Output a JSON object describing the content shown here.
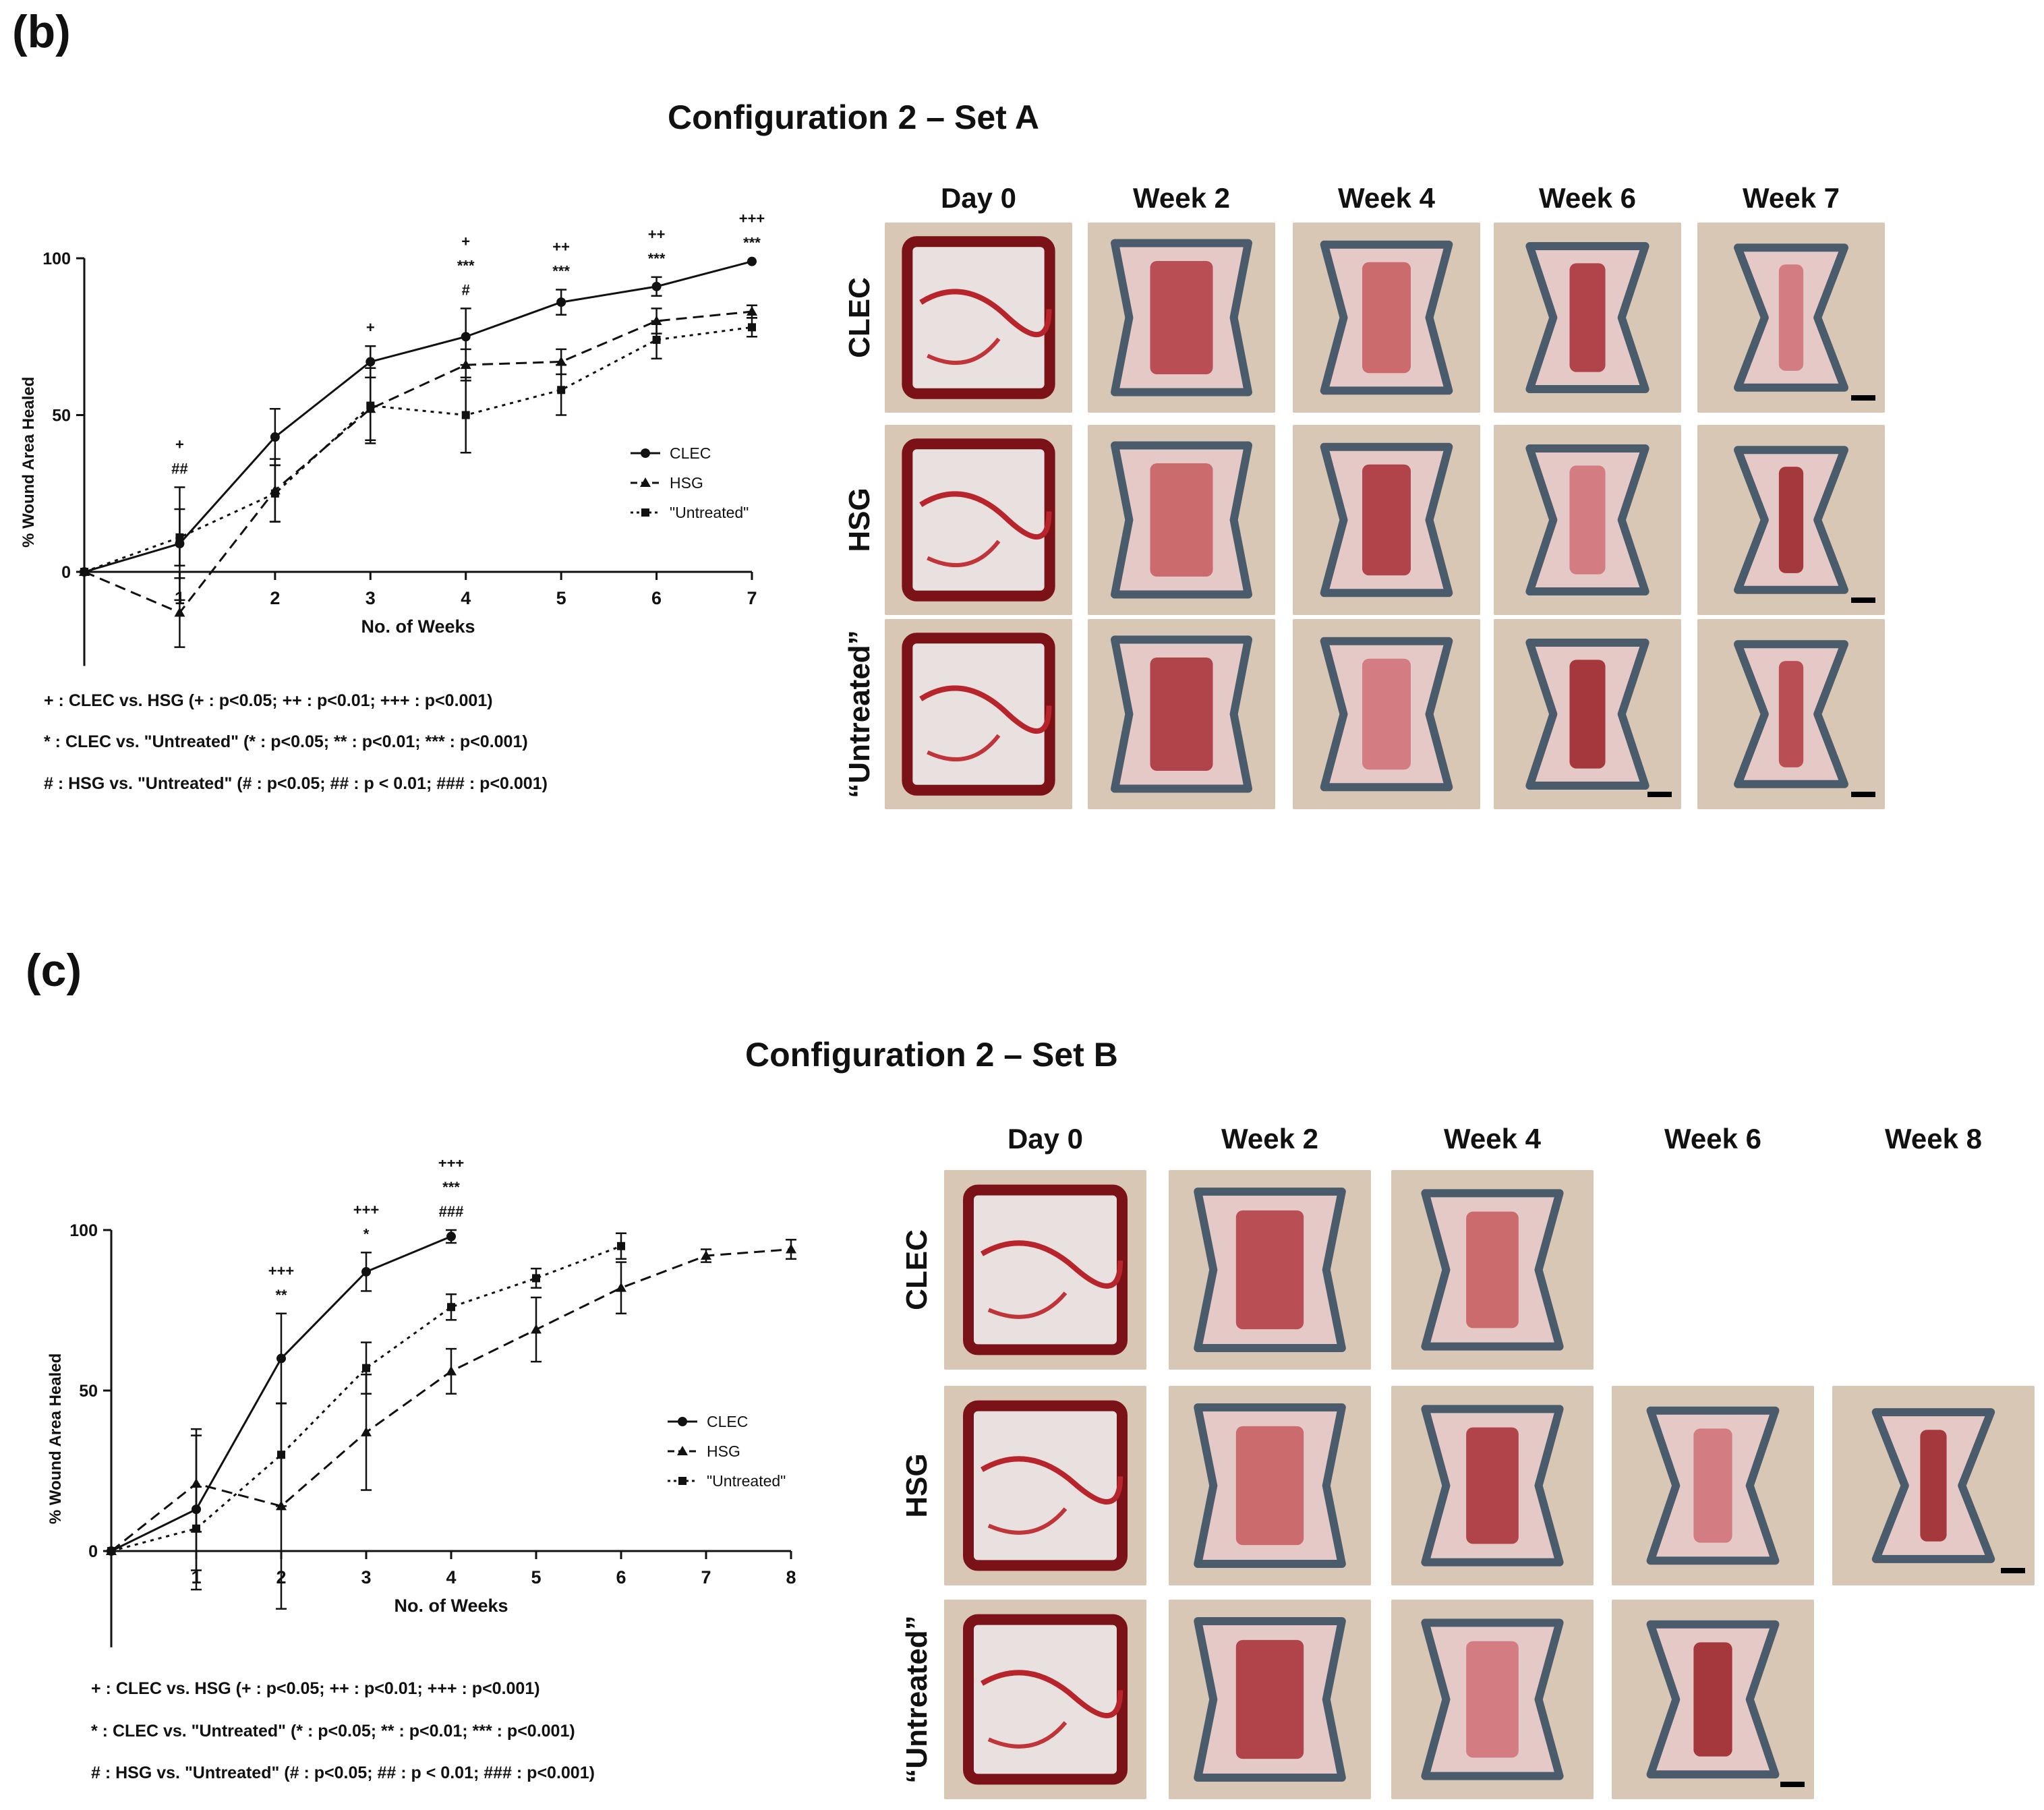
{
  "panels": [
    {
      "letter": "(b)",
      "title": "Configuration 2 – Set A",
      "col_headers": [
        "Day 0",
        "Week 2",
        "Week 4",
        "Week 6",
        "Week 7"
      ],
      "row_headers": [
        "CLEC",
        "HSG",
        "“Untreated”"
      ],
      "stat_legend": [
        "+ : CLEC vs. HSG (+ : p<0.05; ++ : p<0.01; +++ : p<0.001)",
        "* : CLEC vs. \"Untreated\" (* : p<0.05; ** : p<0.01; *** : p<0.001)",
        "# : HSG vs. \"Untreated\" (# : p<0.05; ## : p < 0.01; ### : p<0.001)"
      ],
      "photo_grid": [
        [
          "wound-tile",
          "wound-tile",
          "wound-tile",
          "wound-tile",
          "wound-tile"
        ],
        [
          "wound-tile",
          "wound-tile",
          "wound-tile",
          "wound-tile",
          "wound-tile"
        ],
        [
          "wound-tile",
          "wound-tile",
          "wound-tile",
          "wound-tile",
          "wound-tile"
        ]
      ]
    },
    {
      "letter": "(c)",
      "title": "Configuration 2 – Set B",
      "col_headers": [
        "Day 0",
        "Week 2",
        "Week 4",
        "Week 6",
        "Week 8"
      ],
      "row_headers": [
        "CLEC",
        "HSG",
        "“Untreated”"
      ],
      "stat_legend": [
        "+ : CLEC vs. HSG (+ : p<0.05; ++ : p<0.01; +++ : p<0.001)",
        "* : CLEC vs. \"Untreated\" (* : p<0.05; ** : p<0.01; *** : p<0.001)",
        "# : HSG vs. \"Untreated\" (# : p<0.05; ## : p < 0.01; ### : p<0.001)"
      ],
      "photo_grid": [
        [
          "wound-tile",
          "wound-tile",
          "wound-tile",
          null,
          null
        ],
        [
          "wound-tile",
          "wound-tile",
          "wound-tile",
          "wound-tile",
          "wound-tile"
        ],
        [
          "wound-tile",
          "wound-tile",
          "wound-tile",
          "wound-tile",
          null
        ]
      ]
    }
  ],
  "colors": {
    "line": "#111111",
    "wound": "#b4323a",
    "skin": "#d8c7b4",
    "ink": "#4a5b6c"
  },
  "chart_data": [
    {
      "type": "line",
      "title": "",
      "xlabel": "No. of Weeks",
      "ylabel": "% Wound Area Healed",
      "xlim": [
        0,
        7
      ],
      "ylim": [
        -30,
        100
      ],
      "x_ticks": [
        1,
        2,
        3,
        4,
        5,
        6,
        7
      ],
      "y_ticks": [
        0,
        50,
        100
      ],
      "legend_position": "right-middle",
      "series": [
        {
          "name": "CLEC",
          "style": "solid",
          "marker": "circle",
          "x": [
            0,
            1,
            2,
            3,
            4,
            5,
            6,
            7
          ],
          "y": [
            0,
            9,
            43,
            67,
            75,
            86,
            91,
            99
          ],
          "err": [
            0,
            18,
            9,
            5,
            9,
            4,
            3,
            0
          ]
        },
        {
          "name": "HSG",
          "style": "dashed",
          "marker": "triangle",
          "x": [
            0,
            1,
            2,
            3,
            4,
            5,
            6,
            7
          ],
          "y": [
            0,
            -13,
            26,
            52,
            66,
            67,
            80,
            83
          ],
          "err": [
            0,
            11,
            10,
            10,
            5,
            4,
            4,
            2
          ]
        },
        {
          "name": "\"Untreated\"",
          "style": "dotted",
          "marker": "square",
          "x": [
            0,
            1,
            2,
            3,
            4,
            5,
            6,
            7
          ],
          "y": [
            0,
            11,
            25,
            53,
            50,
            58,
            74,
            78
          ],
          "err": [
            0,
            9,
            9,
            12,
            12,
            8,
            6,
            3
          ]
        }
      ],
      "annotations": [
        {
          "x": 1,
          "lines": [
            "+",
            "##"
          ]
        },
        {
          "x": 3,
          "lines": [
            "+"
          ]
        },
        {
          "x": 4,
          "lines": [
            "+",
            "***",
            "#"
          ]
        },
        {
          "x": 5,
          "lines": [
            "++",
            "***"
          ]
        },
        {
          "x": 6,
          "lines": [
            "++",
            "***"
          ]
        },
        {
          "x": 7,
          "lines": [
            "+++",
            "***"
          ]
        }
      ]
    },
    {
      "type": "line",
      "title": "",
      "xlabel": "No. of Weeks",
      "ylabel": "% Wound Area Healed",
      "xlim": [
        0,
        8
      ],
      "ylim": [
        -30,
        100
      ],
      "x_ticks": [
        1,
        2,
        3,
        4,
        5,
        6,
        7,
        8
      ],
      "y_ticks": [
        0,
        50,
        100
      ],
      "legend_position": "right-middle",
      "series": [
        {
          "name": "CLEC",
          "style": "solid",
          "marker": "circle",
          "x": [
            0,
            1,
            2,
            3,
            4
          ],
          "y": [
            0,
            13,
            60,
            87,
            98
          ],
          "err": [
            0,
            25,
            14,
            6,
            2
          ]
        },
        {
          "name": "HSG",
          "style": "dashed",
          "marker": "triangle",
          "x": [
            0,
            1,
            2,
            3,
            4,
            5,
            6,
            7,
            8
          ],
          "y": [
            0,
            21,
            14,
            37,
            56,
            69,
            82,
            92,
            94
          ],
          "err": [
            0,
            15,
            32,
            18,
            7,
            10,
            8,
            2,
            3
          ]
        },
        {
          "name": "\"Untreated\"",
          "style": "dotted",
          "marker": "square",
          "x": [
            0,
            1,
            2,
            3,
            4,
            5,
            6
          ],
          "y": [
            0,
            7,
            30,
            57,
            76,
            85,
            95
          ],
          "err": [
            0,
            13,
            16,
            8,
            4,
            3,
            4
          ]
        }
      ],
      "annotations": [
        {
          "x": 2,
          "lines": [
            "+++",
            "**"
          ]
        },
        {
          "x": 3,
          "lines": [
            "+++",
            "*"
          ]
        },
        {
          "x": 4,
          "lines": [
            "+++",
            "***",
            "###"
          ]
        }
      ]
    }
  ]
}
